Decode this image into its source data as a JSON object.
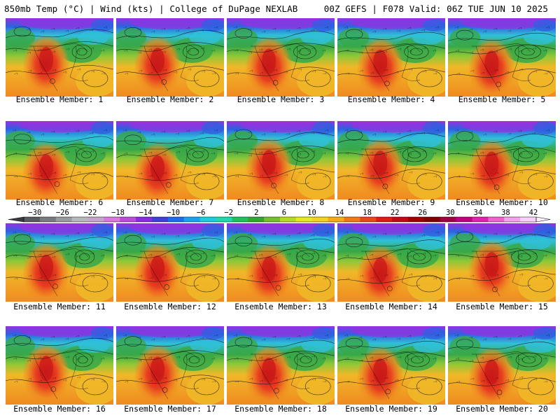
{
  "header": {
    "left": "850mb Temp (°C) | Wind (kts) | College of DuPage NEXLAB",
    "right": "00Z GEFS | F078 Valid: 06Z TUE JUN 10 2025"
  },
  "members": [
    "Ensemble Member: 1",
    "Ensemble Member: 2",
    "Ensemble Member: 3",
    "Ensemble Member: 4",
    "Ensemble Member: 5",
    "Ensemble Member: 6",
    "Ensemble Member: 7",
    "Ensemble Member: 8",
    "Ensemble Member: 9",
    "Ensemble Member: 10",
    "Ensemble Member: 11",
    "Ensemble Member: 12",
    "Ensemble Member: 13",
    "Ensemble Member: 14",
    "Ensemble Member: 15",
    "Ensemble Member: 16",
    "Ensemble Member: 17",
    "Ensemble Member: 18",
    "Ensemble Member: 19",
    "Ensemble Member: 20"
  ],
  "colorbar": {
    "labels": [
      "-30",
      "-26",
      "-22",
      "-18",
      "-14",
      "-10",
      "-6",
      "-2",
      "2",
      "6",
      "10",
      "14",
      "18",
      "22",
      "26",
      "30",
      "34",
      "38",
      "42"
    ],
    "colors": [
      "#5a5a5a",
      "#7a7a7a",
      "#9a9a9a",
      "#b8b8b8",
      "#c9a4c9",
      "#d978d9",
      "#c048e0",
      "#8a2be2",
      "#4040d8",
      "#1e6cf0",
      "#1ea0f0",
      "#20c8e0",
      "#20d8a8",
      "#20c060",
      "#30a830",
      "#70c030",
      "#b8d828",
      "#e8e820",
      "#f8d020",
      "#f8a818",
      "#f07818",
      "#e84818",
      "#e01818",
      "#c00818",
      "#a00000",
      "#800000",
      "#a00040",
      "#c00080",
      "#e020b0",
      "#f060d0",
      "#f8a0e8",
      "#fcd0f4"
    ]
  },
  "map_style": {
    "warm_core": "#c81818",
    "hot": "#e84020",
    "warm": "#f08a20",
    "mild": "#f0b828",
    "cool_green": "#38a848",
    "lime": "#8cc838",
    "cyan": "#30c0d8",
    "blue": "#3060e0",
    "violet": "#9830e0"
  }
}
